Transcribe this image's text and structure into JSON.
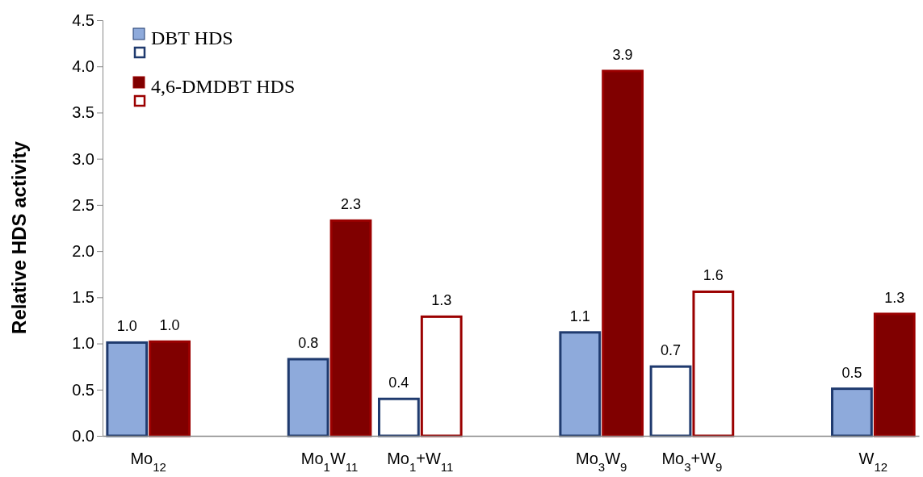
{
  "chart_data": {
    "type": "bar",
    "ylabel": "Relative HDS activity",
    "categories": [
      "Mo$_{12}$",
      null,
      "Mo$_{1}$W$_{11}$",
      "Mo$_{1}$+W$_{11}$",
      null,
      "Mo$_{3}$W$_{9}$",
      "Mo$_{3}$+W$_{9}$",
      null,
      "W$_{12}$"
    ],
    "series": [
      {
        "name": "DBT HDS",
        "color": "#1f3a6e",
        "colors": [
          "#8eaadb",
          null,
          "#8eaadb",
          "#ffffff",
          null,
          "#8eaadb",
          "#ffffff",
          null,
          "#8eaadb"
        ],
        "values": [
          1.01,
          null,
          0.83,
          0.4,
          null,
          1.12,
          0.75,
          null,
          0.51
        ],
        "value_labels": [
          "1.0",
          null,
          "0.8",
          "0.4",
          null,
          "1.1",
          "0.7",
          null,
          "0.5"
        ]
      },
      {
        "name": "4,6-DMDBT HDS",
        "color": "#9b0000",
        "colors": [
          "#800000",
          null,
          "#800000",
          "#ffffff",
          null,
          "#800000",
          "#ffffff",
          null,
          "#800000"
        ],
        "values": [
          1.02,
          null,
          2.33,
          1.29,
          null,
          3.95,
          1.56,
          null,
          1.32
        ],
        "value_labels": [
          "1.0",
          null,
          "2.3",
          "1.3",
          null,
          "3.9",
          "1.6",
          null,
          "1.3"
        ]
      }
    ],
    "ylim": [
      0,
      4.5
    ],
    "yticks": [
      {
        "value": 0,
        "label": "0.0"
      },
      {
        "value": 0.5,
        "label": "0.5"
      },
      {
        "value": 1,
        "label": "1.0"
      },
      {
        "value": 1.5,
        "label": "1.5"
      },
      {
        "value": 2,
        "label": "2.0"
      },
      {
        "value": 2.5,
        "label": "2.5"
      },
      {
        "value": 3,
        "label": "3.0"
      },
      {
        "value": 3.5,
        "label": "3.5"
      },
      {
        "value": 4,
        "label": "4.0"
      },
      {
        "value": 4.5,
        "label": "4.5"
      }
    ],
    "grid": false,
    "legend": "top left"
  }
}
